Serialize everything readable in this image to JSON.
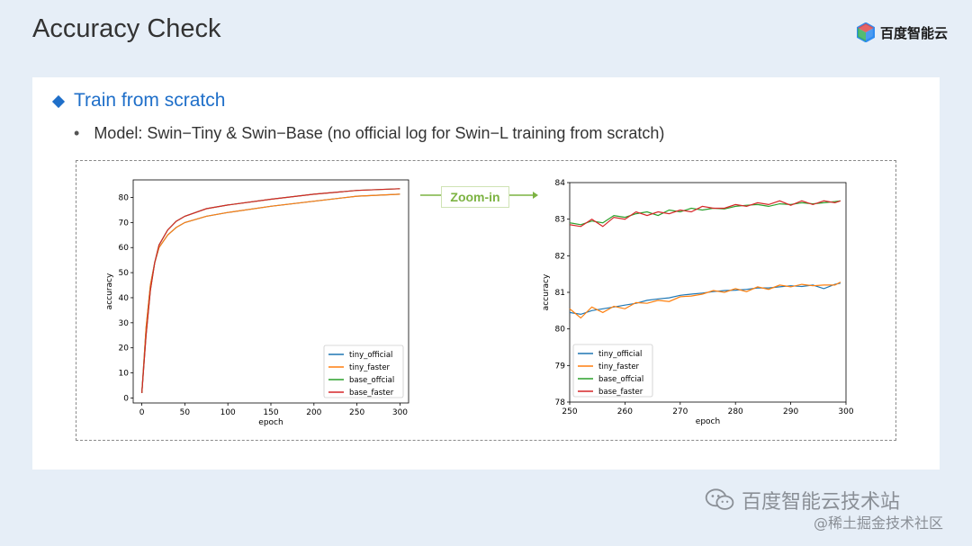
{
  "header": {
    "title": "Accuracy Check"
  },
  "logo": {
    "text": "百度智能云"
  },
  "section": {
    "title": "Train from scratch",
    "bullet": "Model: Swin−Tiny & Swin−Base (no official log for Swin−L training from scratch)"
  },
  "zoom": {
    "label": "Zoom-in"
  },
  "watermark": {
    "line1": "百度智能云技术站",
    "line2": "@稀土掘金技术社区"
  },
  "colors": {
    "tiny_official": "#1f77b4",
    "tiny_faster": "#ff7f0e",
    "base_offcial": "#2ca02c",
    "base_faster": "#d62728"
  },
  "chart_data": [
    {
      "type": "line",
      "xlabel": "epoch",
      "ylabel": "accuracy",
      "xlim": [
        -10,
        310
      ],
      "ylim": [
        -2,
        87
      ],
      "xticks": [
        0,
        50,
        100,
        150,
        200,
        250,
        300
      ],
      "yticks": [
        0,
        10,
        20,
        30,
        40,
        50,
        60,
        70,
        80
      ],
      "legend_position": "lower-right",
      "series": [
        {
          "name": "tiny_official",
          "x": [
            0,
            5,
            10,
            15,
            20,
            30,
            40,
            50,
            75,
            100,
            150,
            200,
            250,
            300
          ],
          "y": [
            2,
            28,
            45,
            54,
            60,
            65,
            68,
            70,
            72.5,
            74,
            76.5,
            78.5,
            80.5,
            81.3
          ]
        },
        {
          "name": "tiny_faster",
          "x": [
            0,
            5,
            10,
            15,
            20,
            30,
            40,
            50,
            75,
            100,
            150,
            200,
            250,
            300
          ],
          "y": [
            2,
            28,
            45,
            54,
            60,
            65,
            68,
            70,
            72.5,
            74,
            76.5,
            78.5,
            80.5,
            81.3
          ]
        },
        {
          "name": "base_offcial",
          "x": [
            0,
            5,
            10,
            15,
            20,
            30,
            40,
            50,
            75,
            100,
            150,
            200,
            250,
            300
          ],
          "y": [
            2,
            25,
            43,
            54,
            61,
            67,
            70.5,
            72.5,
            75.5,
            77,
            79.3,
            81.3,
            82.8,
            83.5
          ]
        },
        {
          "name": "base_faster",
          "x": [
            0,
            5,
            10,
            15,
            20,
            30,
            40,
            50,
            75,
            100,
            150,
            200,
            250,
            300
          ],
          "y": [
            2,
            25,
            43,
            54,
            61,
            67,
            70.5,
            72.5,
            75.5,
            77,
            79.3,
            81.3,
            82.8,
            83.5
          ]
        }
      ]
    },
    {
      "type": "line",
      "xlabel": "epoch",
      "ylabel": "accuracy",
      "xlim": [
        250,
        300
      ],
      "ylim": [
        78,
        84
      ],
      "xticks": [
        250,
        260,
        270,
        280,
        290,
        300
      ],
      "yticks": [
        78,
        79,
        80,
        81,
        82,
        83,
        84
      ],
      "legend_position": "lower-left",
      "series": [
        {
          "name": "tiny_official",
          "x": [
            250,
            252,
            254,
            256,
            258,
            260,
            262,
            264,
            266,
            268,
            270,
            272,
            274,
            276,
            278,
            280,
            282,
            284,
            286,
            288,
            290,
            292,
            294,
            296,
            298,
            299
          ],
          "y": [
            80.45,
            80.4,
            80.5,
            80.55,
            80.6,
            80.65,
            80.7,
            80.78,
            80.82,
            80.85,
            80.92,
            80.95,
            80.98,
            81.02,
            81.05,
            81.06,
            81.08,
            81.12,
            81.12,
            81.15,
            81.18,
            81.16,
            81.2,
            81.1,
            81.22,
            81.25
          ]
        },
        {
          "name": "tiny_faster",
          "x": [
            250,
            252,
            254,
            256,
            258,
            260,
            262,
            264,
            266,
            268,
            270,
            272,
            274,
            276,
            278,
            280,
            282,
            284,
            286,
            288,
            290,
            292,
            294,
            296,
            298,
            299
          ],
          "y": [
            80.55,
            80.3,
            80.6,
            80.45,
            80.62,
            80.55,
            80.72,
            80.7,
            80.78,
            80.75,
            80.88,
            80.9,
            80.95,
            81.05,
            81.0,
            81.1,
            81.02,
            81.15,
            81.08,
            81.2,
            81.15,
            81.22,
            81.18,
            81.2,
            81.2,
            81.28
          ]
        },
        {
          "name": "base_offcial",
          "x": [
            250,
            252,
            254,
            256,
            258,
            260,
            262,
            264,
            266,
            268,
            270,
            272,
            274,
            276,
            278,
            280,
            282,
            284,
            286,
            288,
            290,
            292,
            294,
            296,
            298,
            299
          ],
          "y": [
            82.9,
            82.85,
            82.95,
            82.9,
            83.1,
            83.05,
            83.15,
            83.2,
            83.1,
            83.25,
            83.2,
            83.3,
            83.25,
            83.3,
            83.28,
            83.35,
            83.38,
            83.4,
            83.35,
            83.42,
            83.4,
            83.45,
            83.42,
            83.45,
            83.48,
            83.5
          ]
        },
        {
          "name": "base_faster",
          "x": [
            250,
            252,
            254,
            256,
            258,
            260,
            262,
            264,
            266,
            268,
            270,
            272,
            274,
            276,
            278,
            280,
            282,
            284,
            286,
            288,
            290,
            292,
            294,
            296,
            298,
            299
          ],
          "y": [
            82.85,
            82.8,
            83.0,
            82.8,
            83.05,
            83.0,
            83.2,
            83.1,
            83.2,
            83.15,
            83.25,
            83.2,
            83.35,
            83.3,
            83.3,
            83.4,
            83.35,
            83.45,
            83.4,
            83.5,
            83.38,
            83.5,
            83.4,
            83.5,
            83.45,
            83.5
          ]
        }
      ]
    }
  ]
}
